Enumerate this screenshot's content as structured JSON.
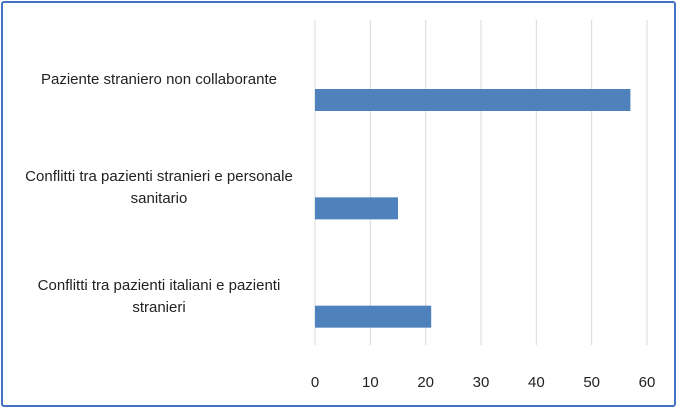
{
  "chart_data": {
    "type": "bar",
    "orientation": "horizontal",
    "categories": [
      "Paziente straniero non collaborante",
      "Conflitti tra pazienti stranieri e personale sanitario",
      "Conflitti tra pazienti italiani e pazienti stranieri"
    ],
    "values": [
      57,
      15,
      21
    ],
    "color": "#4f81bd",
    "xlim": [
      0,
      60
    ],
    "xticks": [
      0,
      10,
      20,
      30,
      40,
      50,
      60
    ],
    "grid": true
  }
}
